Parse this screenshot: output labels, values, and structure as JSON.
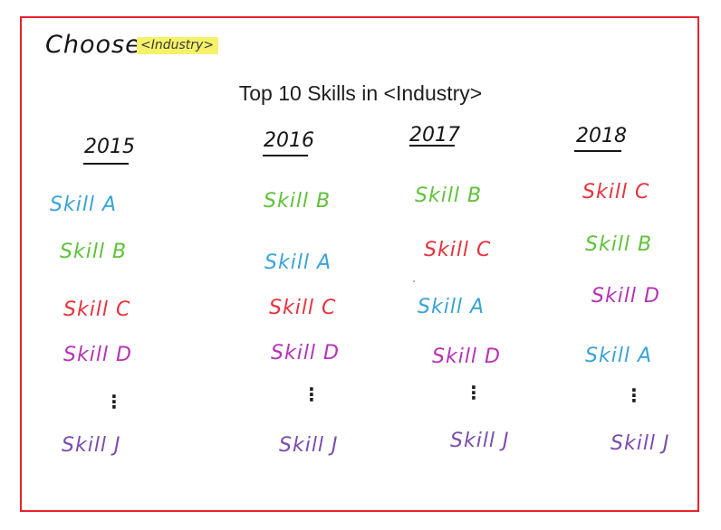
{
  "header": {
    "choose_label": "Choose:",
    "industry_placeholder": "<Industry>",
    "highlight_color": "#f5f26a"
  },
  "title": "Top 10 Skills in <Industry>",
  "frame_color": "#e8212b",
  "skill_colors": {
    "Skill A": "#3aa3d8",
    "Skill B": "#5fc23a",
    "Skill C": "#e8323c",
    "Skill D": "#b632b6",
    "Skill J": "#7a4cb0"
  },
  "columns": [
    {
      "year": "2015",
      "skills": [
        "Skill A",
        "Skill B",
        "Skill C",
        "Skill D",
        "Skill J"
      ]
    },
    {
      "year": "2016",
      "skills": [
        "Skill B",
        "Skill A",
        "Skill C",
        "Skill D",
        "Skill J"
      ]
    },
    {
      "year": "2017",
      "skills": [
        "Skill B",
        "Skill C",
        "Skill A",
        "Skill D",
        "Skill J"
      ]
    },
    {
      "year": "2018",
      "skills": [
        "Skill C",
        "Skill B",
        "Skill D",
        "Skill A",
        "Skill J"
      ]
    }
  ],
  "ellipsis": "⋮"
}
